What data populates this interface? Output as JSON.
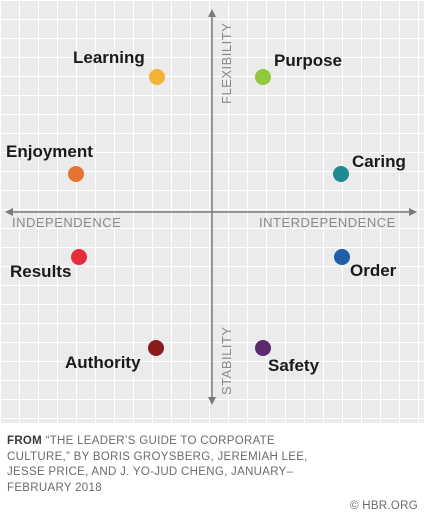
{
  "axes": {
    "top": "FLEXIBILITY",
    "bottom": "STABILITY",
    "left": "INDEPENDENCE",
    "right": "INTERDEPENDENCE"
  },
  "cultures": [
    {
      "id": "learning",
      "label": "Learning",
      "color": "#f5b335"
    },
    {
      "id": "purpose",
      "label": "Purpose",
      "color": "#92c83e"
    },
    {
      "id": "enjoyment",
      "label": "Enjoyment",
      "color": "#e57332"
    },
    {
      "id": "caring",
      "label": "Caring",
      "color": "#1d8a94"
    },
    {
      "id": "results",
      "label": "Results",
      "color": "#e52d3c"
    },
    {
      "id": "order",
      "label": "Order",
      "color": "#1f5ea8"
    },
    {
      "id": "authority",
      "label": "Authority",
      "color": "#8b1a1a"
    },
    {
      "id": "safety",
      "label": "Safety",
      "color": "#5b2a6e"
    }
  ],
  "footer": {
    "from_label": "FROM",
    "citation": "“THE LEADER’S GUIDE TO CORPORATE CULTURE,” BY BORIS GROYSBERG, JEREMIAH LEE, JESSE PRICE, AND J. YO-JUD CHENG, JANUARY–FEBRUARY 2018",
    "copyright": "© HBR.ORG"
  }
}
